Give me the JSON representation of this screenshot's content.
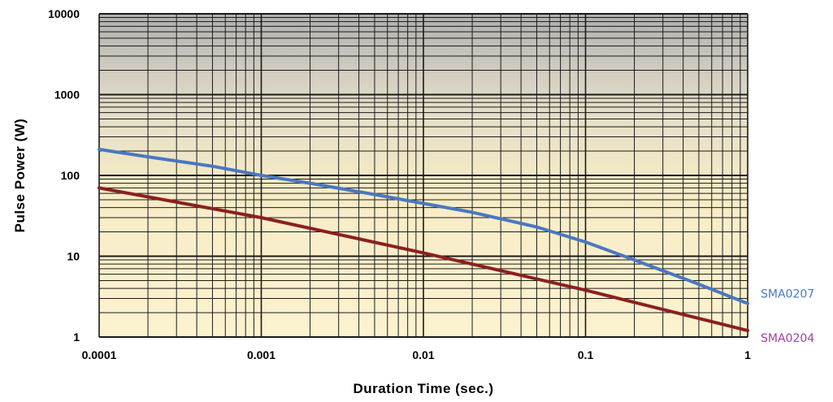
{
  "chart_data": {
    "type": "line",
    "title": "",
    "xlabel": "Duration Time (sec.)",
    "ylabel": "Pulse Power (W)",
    "x_scale": "log",
    "y_scale": "log",
    "xlim": [
      0.0001,
      1
    ],
    "ylim": [
      1,
      10000
    ],
    "grid": true,
    "x_ticks": [
      "0.0001",
      "0.001",
      "0.01",
      "0.1",
      "1"
    ],
    "y_ticks": [
      "1",
      "10",
      "100",
      "1000",
      "10000"
    ],
    "legend_position": "right, at line ends",
    "colors": {
      "background_top": "#b0b0b0",
      "background_bottom": "#fdf0c8",
      "grid": "#1a1a1a"
    },
    "series": [
      {
        "name": "SMA0207",
        "color": "#4a78c0",
        "label_color": "#4a78c0",
        "x": [
          0.0001,
          0.0002,
          0.0005,
          0.001,
          0.002,
          0.005,
          0.01,
          0.02,
          0.05,
          0.1,
          0.2,
          0.5,
          1
        ],
        "y": [
          210,
          170,
          130,
          100,
          80,
          58,
          45,
          35,
          23,
          15,
          9,
          4.5,
          2.6
        ]
      },
      {
        "name": "SMA0204",
        "color": "#8b2020",
        "label_color": "#a040a0",
        "x": [
          0.0001,
          0.001,
          0.01,
          0.1,
          1
        ],
        "y": [
          70,
          30,
          11,
          3.8,
          1.2
        ]
      }
    ]
  }
}
